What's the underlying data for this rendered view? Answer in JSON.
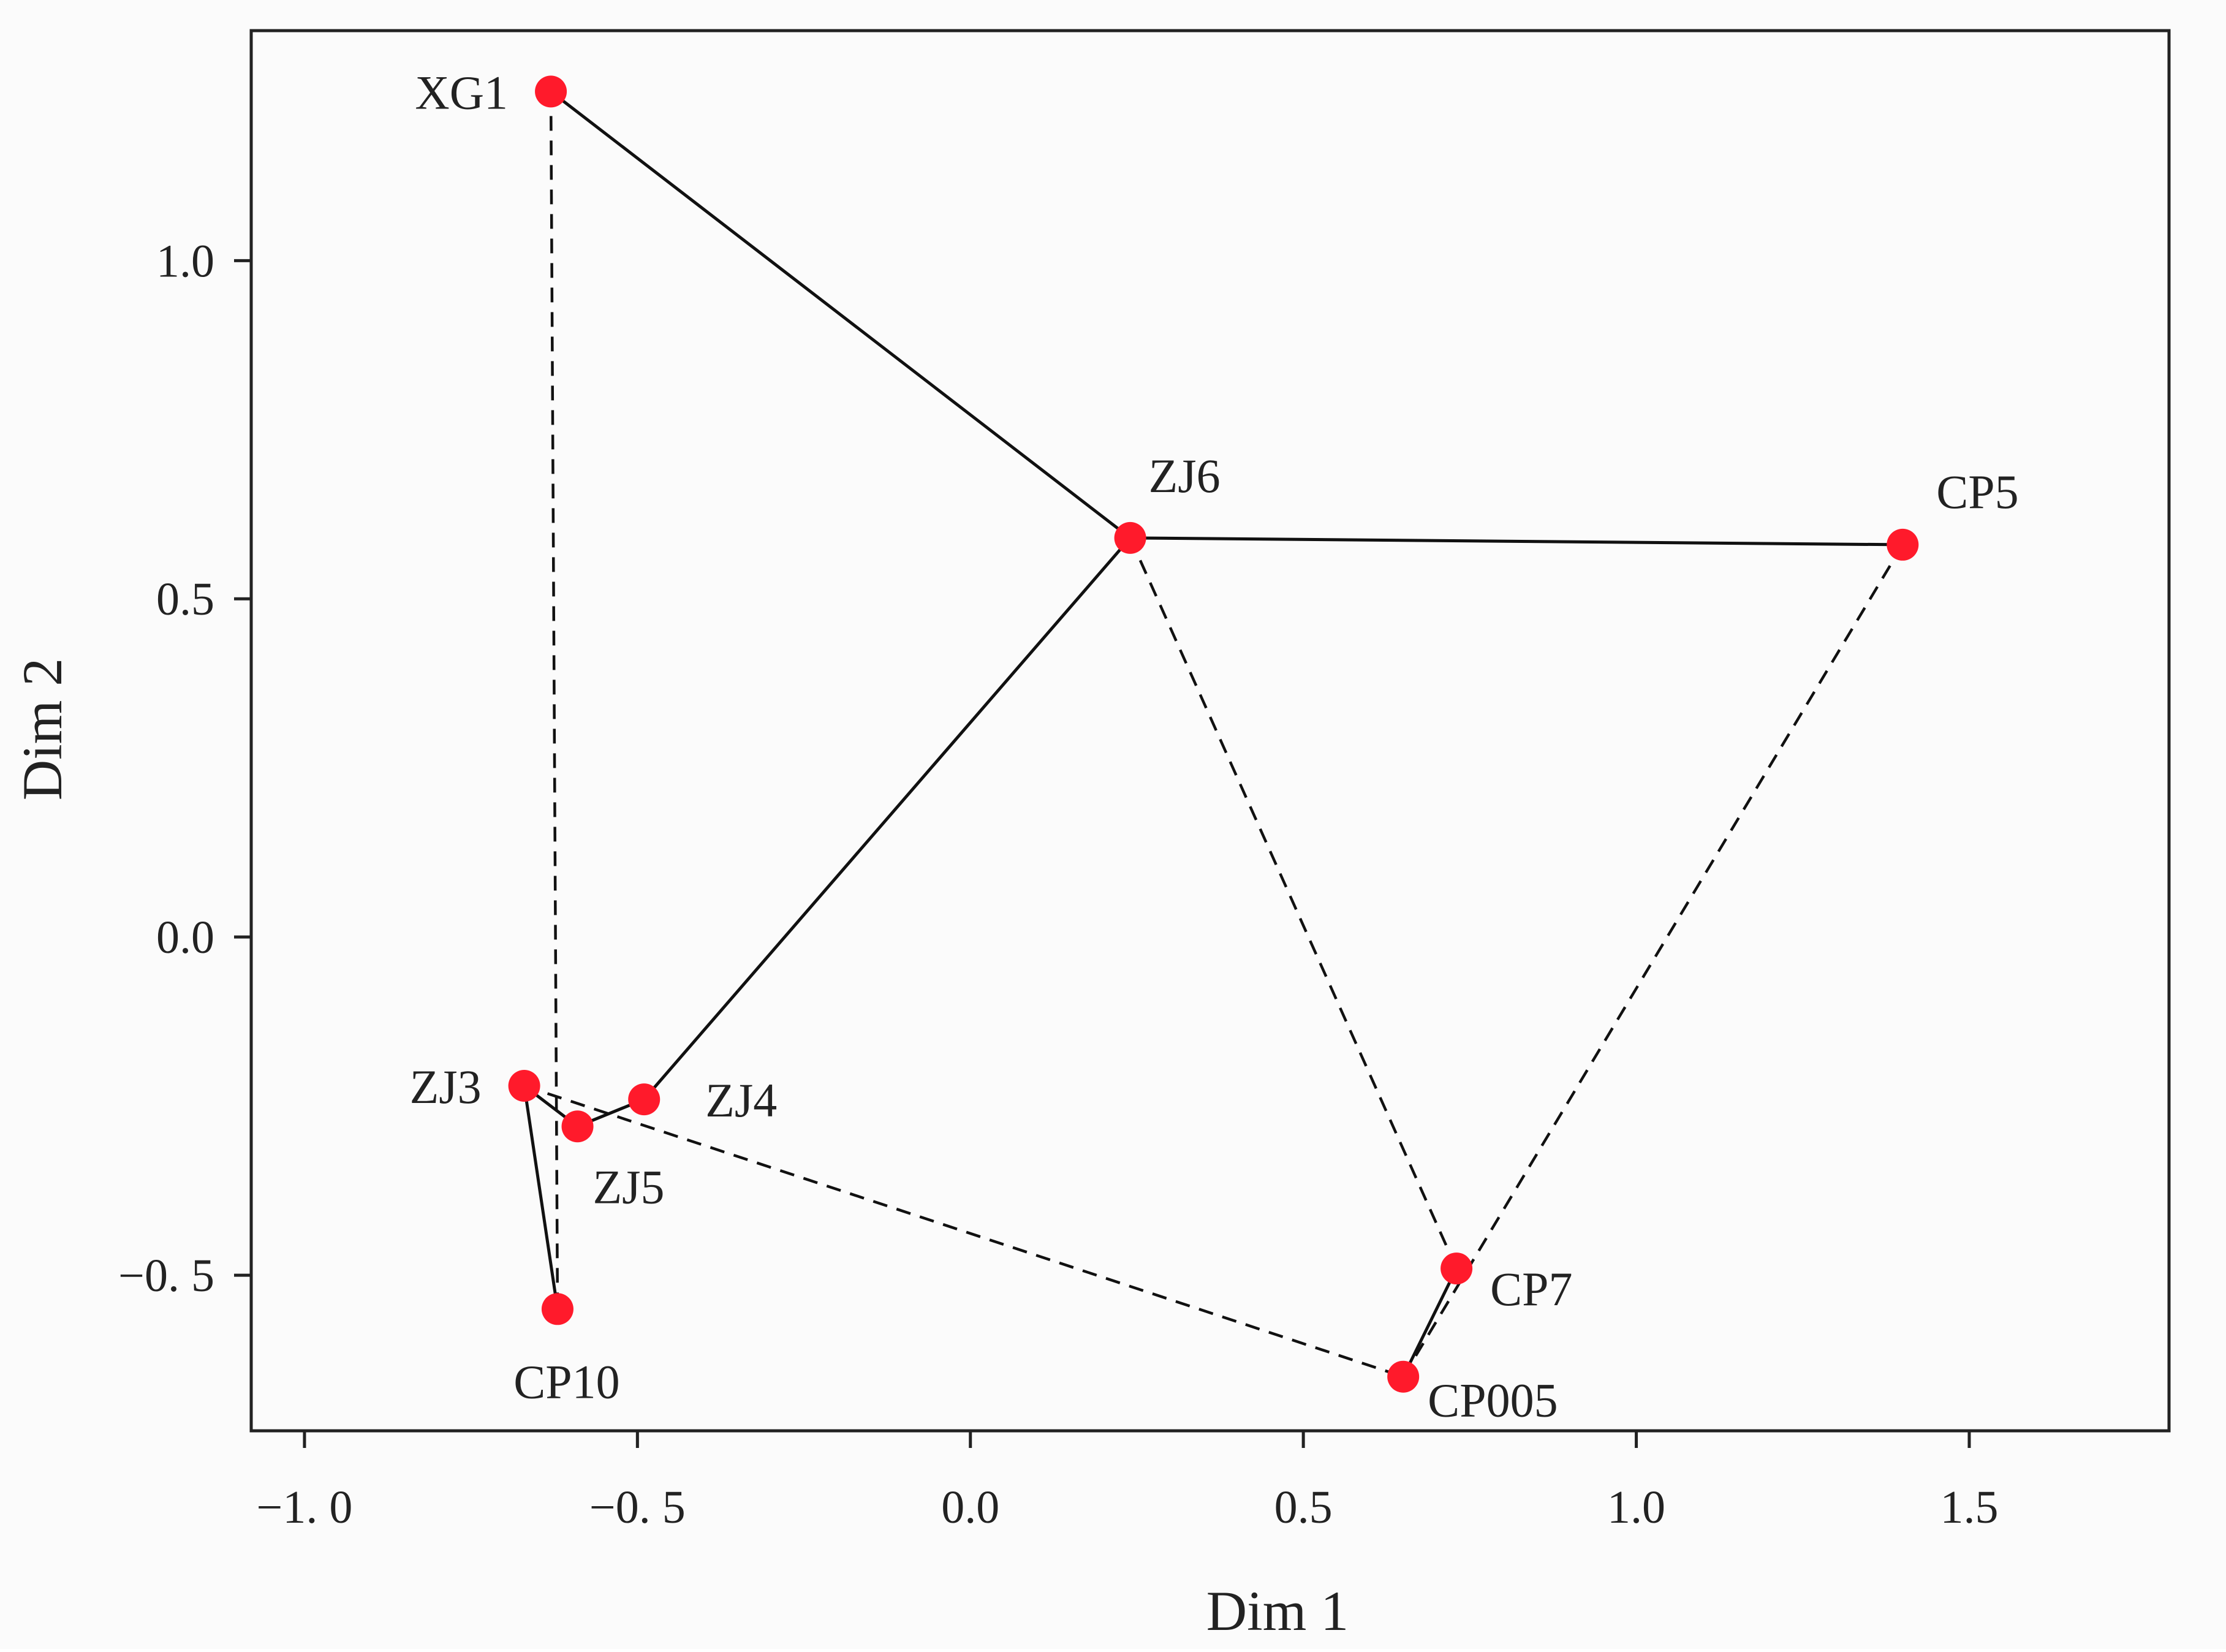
{
  "chart_data": {
    "type": "scatter",
    "title": "",
    "xlabel": "Dim 1",
    "ylabel": "Dim 2",
    "xlim": [
      -1.08,
      1.8
    ],
    "ylim": [
      -0.73,
      1.34
    ],
    "x_ticks": [
      -1.0,
      -0.5,
      0.0,
      0.5,
      1.0,
      1.5
    ],
    "x_tick_labels": [
      "−1. 0",
      "−0. 5",
      "0.0",
      "0.5",
      "1.0",
      "1.5"
    ],
    "y_ticks": [
      -0.5,
      0.0,
      0.5,
      1.0
    ],
    "y_tick_labels": [
      "−0. 5",
      "0.0",
      "0.5",
      "1.0"
    ],
    "grid": false,
    "legend": "none",
    "point_color": "#ff1a2b",
    "line_color": "#111111",
    "points": [
      {
        "label": "XG1",
        "x": -0.63,
        "y": 1.25
      },
      {
        "label": "ZJ6",
        "x": 0.24,
        "y": 0.59
      },
      {
        "label": "CP5",
        "x": 1.4,
        "y": 0.58
      },
      {
        "label": "ZJ3",
        "x": -0.67,
        "y": -0.22
      },
      {
        "label": "ZJ5",
        "x": -0.59,
        "y": -0.28
      },
      {
        "label": "ZJ4",
        "x": -0.49,
        "y": -0.24
      },
      {
        "label": "CP10",
        "x": -0.62,
        "y": -0.55
      },
      {
        "label": "CP7",
        "x": 0.73,
        "y": -0.49
      },
      {
        "label": "CP005",
        "x": 0.65,
        "y": -0.65
      }
    ],
    "solid_edges": [
      [
        "XG1",
        "ZJ6"
      ],
      [
        "ZJ6",
        "CP5"
      ],
      [
        "ZJ6",
        "ZJ4"
      ],
      [
        "ZJ4",
        "ZJ5"
      ],
      [
        "ZJ5",
        "ZJ3"
      ],
      [
        "ZJ3",
        "CP10"
      ],
      [
        "CP7",
        "CP005"
      ]
    ],
    "dashed_edges": [
      [
        "XG1",
        "CP10"
      ],
      [
        "ZJ6",
        "CP7"
      ],
      [
        "CP5",
        "CP005"
      ],
      [
        "ZJ3",
        "CP005"
      ]
    ]
  }
}
